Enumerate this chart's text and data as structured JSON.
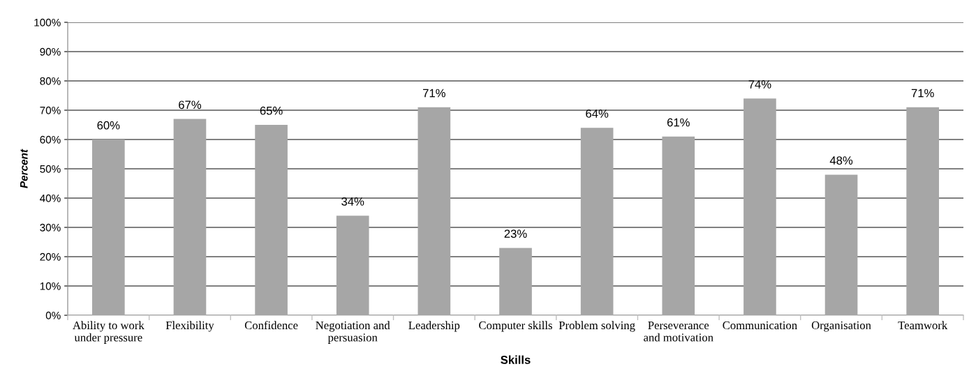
{
  "chart_data": {
    "type": "bar",
    "xlabel": "Skills",
    "ylabel": "Percent",
    "categories": [
      "Ability to work\nunder pressure",
      "Flexibility",
      "Confidence",
      "Negotiation and\npersuasion",
      "Leadership",
      "Computer skills",
      "Problem solving",
      "Perseverance\nand motivation",
      "Communication",
      "Organisation",
      "Teamwork"
    ],
    "values": [
      60,
      67,
      65,
      34,
      71,
      23,
      64,
      61,
      74,
      48,
      71
    ],
    "color": "#a6a6a6",
    "data_labels": true,
    "value_labels": [
      "60%",
      "67%",
      "65%",
      "34%",
      "71%",
      "23%",
      "64%",
      "61%",
      "74%",
      "48%",
      "71%"
    ],
    "ylim": [
      0,
      100
    ],
    "yticks": [
      {
        "value": 0,
        "label": "0%"
      },
      {
        "value": 10,
        "label": "10%"
      },
      {
        "value": 20,
        "label": "20%"
      },
      {
        "value": 30,
        "label": "30%"
      },
      {
        "value": 40,
        "label": "40%"
      },
      {
        "value": 50,
        "label": "50%"
      },
      {
        "value": 60,
        "label": "60%"
      },
      {
        "value": 70,
        "label": "70%"
      },
      {
        "value": 80,
        "label": "80%"
      },
      {
        "value": 90,
        "label": "90%"
      },
      {
        "value": 100,
        "label": "100%"
      }
    ],
    "grid": "y"
  }
}
